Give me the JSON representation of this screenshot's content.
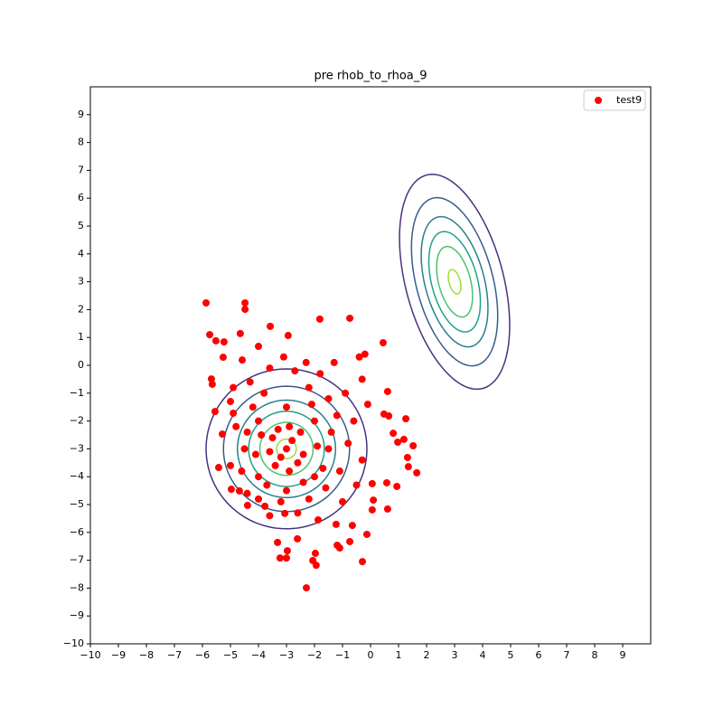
{
  "chart_data": {
    "type": "scatter",
    "title": "pre rhob_to_rhoa_9",
    "xlim": [
      -10,
      10
    ],
    "ylim": [
      -10,
      10
    ],
    "xticks": [
      {
        "value": -10,
        "label": "−10"
      },
      {
        "value": -9,
        "label": "−9"
      },
      {
        "value": -8,
        "label": "−8"
      },
      {
        "value": -7,
        "label": "−7"
      },
      {
        "value": -6,
        "label": "−6"
      },
      {
        "value": -5,
        "label": "−5"
      },
      {
        "value": -4,
        "label": "−4"
      },
      {
        "value": -3,
        "label": "−3"
      },
      {
        "value": -2,
        "label": "−2"
      },
      {
        "value": -1,
        "label": "−1"
      },
      0,
      1,
      2,
      3,
      4,
      5,
      6,
      7,
      8,
      9
    ],
    "yticks": [
      {
        "value": -10,
        "label": "−10"
      },
      {
        "value": -9,
        "label": "−9"
      },
      {
        "value": -8,
        "label": "−8"
      },
      {
        "value": -7,
        "label": "−7"
      },
      {
        "value": -6,
        "label": "−6"
      },
      {
        "value": -5,
        "label": "−5"
      },
      {
        "value": -4,
        "label": "−4"
      },
      {
        "value": -3,
        "label": "−3"
      },
      {
        "value": -2,
        "label": "−2"
      },
      {
        "value": -1,
        "label": "−1"
      },
      0,
      1,
      2,
      3,
      4,
      5,
      6,
      7,
      8,
      9
    ],
    "legend": "upper right",
    "contours": [
      {
        "cx": -3,
        "cy": -3,
        "rx": 2.87,
        "ry": 2.87,
        "angle": 0,
        "color": "#46327e"
      },
      {
        "cx": -3,
        "cy": -3,
        "rx": 2.25,
        "ry": 2.25,
        "angle": 0,
        "color": "#365c8d"
      },
      {
        "cx": -3,
        "cy": -3,
        "rx": 1.75,
        "ry": 1.75,
        "angle": 0,
        "color": "#277f8e"
      },
      {
        "cx": -3,
        "cy": -3,
        "rx": 1.35,
        "ry": 1.35,
        "angle": 0,
        "color": "#1fa187"
      },
      {
        "cx": -3,
        "cy": -3,
        "rx": 0.95,
        "ry": 0.95,
        "angle": 0,
        "color": "#4ac16d"
      },
      {
        "cx": -3,
        "cy": -3,
        "rx": 0.35,
        "ry": 0.35,
        "angle": 0,
        "color": "#a0da39"
      },
      {
        "cx": 3,
        "cy": 3,
        "rx": 3.96,
        "ry": 1.75,
        "angle": 104.6,
        "color": "#46327e"
      },
      {
        "cx": 3,
        "cy": 3,
        "rx": 3.1,
        "ry": 1.37,
        "angle": 104.6,
        "color": "#365c8d"
      },
      {
        "cx": 3,
        "cy": 3,
        "rx": 2.4,
        "ry": 1.06,
        "angle": 104.6,
        "color": "#277f8e"
      },
      {
        "cx": 3,
        "cy": 3,
        "rx": 1.85,
        "ry": 0.82,
        "angle": 104.6,
        "color": "#1fa187"
      },
      {
        "cx": 3,
        "cy": 3,
        "rx": 1.3,
        "ry": 0.57,
        "angle": 104.6,
        "color": "#4ac16d"
      },
      {
        "cx": 3,
        "cy": 3,
        "rx": 0.45,
        "ry": 0.2,
        "angle": 104.6,
        "color": "#a0da39"
      }
    ],
    "series": [
      {
        "name": "test9",
        "color": "#ff0000",
        "x": [
          -5.87,
          -4.48,
          -4.48,
          -5.74,
          -5.52,
          -5.23,
          -4.65,
          -3.58,
          -1.81,
          -0.74,
          -2.94,
          0.45,
          -5.26,
          -5.68,
          -5.65,
          -5.55,
          -5.29,
          -5.42,
          -4.9,
          -4.0,
          -4.58,
          0.61,
          0.48,
          0.65,
          1.26,
          0.81,
          0.97,
          1.19,
          1.52,
          1.32,
          1.35,
          1.65,
          0.94,
          0.58,
          0.06,
          0.1,
          0.06,
          0.61,
          -0.65,
          -0.13,
          -1.19,
          -0.74,
          -3.32,
          -2.97,
          -3.23,
          -3.0,
          -2.61,
          -1.97,
          -2.06,
          -1.94,
          -1.1,
          -2.29,
          -0.29,
          -1.23,
          -1.87,
          -3.06,
          -3.77,
          -4.39,
          -4.97,
          -4.68,
          -3,
          -2.8,
          -3.2,
          -2.5,
          -3.5,
          -2.6,
          -3.4,
          -2,
          -4,
          -2,
          -4,
          -1.5,
          -4.5,
          -3,
          -3,
          -1.2,
          -1.5,
          -2.2,
          -3.8,
          -4.2,
          -4.8,
          -4.6,
          -4,
          -3.2,
          -2.2,
          -1.6,
          -1.1,
          -0.8,
          -0.6,
          -0.9,
          -1.8,
          -2.7,
          -3.6,
          -4.3,
          -0.3,
          -0.1,
          -0.3,
          -0.5,
          -1,
          -2.6,
          -3.6,
          -4.4,
          -5,
          -5,
          -4.9,
          -1.3,
          -0.4,
          -0.2,
          -2.3,
          -3.1,
          -2.9,
          -3.6,
          -2.4,
          -2.9,
          -3.3,
          -1.9,
          -4.1,
          -2.1,
          -3.9,
          -2.4,
          -3.7,
          -1.4,
          -1.7,
          -4.4
        ],
        "y": [
          2.24,
          2.24,
          2.01,
          1.1,
          0.88,
          0.84,
          1.14,
          1.4,
          1.66,
          1.69,
          1.07,
          0.81,
          0.29,
          -0.49,
          -0.68,
          -1.66,
          -2.47,
          -3.67,
          -1.72,
          0.68,
          0.19,
          -0.94,
          -1.75,
          -1.82,
          -1.92,
          -2.44,
          -2.76,
          -2.66,
          -2.89,
          -3.31,
          -3.64,
          -3.86,
          -4.35,
          -4.22,
          -4.25,
          -4.84,
          -5.19,
          -5.16,
          -5.75,
          -6.07,
          -6.46,
          -6.33,
          -6.36,
          -6.66,
          -6.92,
          -6.92,
          -6.23,
          -6.75,
          -7.01,
          -7.18,
          -6.56,
          -7.99,
          -7.05,
          -5.71,
          -5.55,
          -5.32,
          -5.06,
          -5.03,
          -4.45,
          -4.51,
          -3,
          -2.7,
          -3.3,
          -2.4,
          -2.6,
          -3.5,
          -3.6,
          -2,
          -2,
          -4,
          -4,
          -3,
          -3,
          -1.5,
          -4.5,
          -1.8,
          -1.2,
          -0.8,
          -1,
          -1.5,
          -2.2,
          -3.8,
          -4.8,
          -4.9,
          -4.8,
          -4.4,
          -3.8,
          -2.8,
          -2,
          -1,
          -0.3,
          -0.2,
          -0.1,
          -0.6,
          -0.5,
          -1.4,
          -3.4,
          -4.3,
          -4.9,
          -5.3,
          -5.4,
          -4.6,
          -3.6,
          -1.3,
          -0.8,
          0.1,
          0.3,
          0.4,
          0.1,
          0.3,
          -2.2,
          -3.1,
          -3.2,
          -3.8,
          -2.3,
          -2.9,
          -3.2,
          -1.4,
          -2.5,
          -4.2,
          -4.3,
          -2.4,
          -3.7,
          -2.4
        ]
      }
    ]
  }
}
